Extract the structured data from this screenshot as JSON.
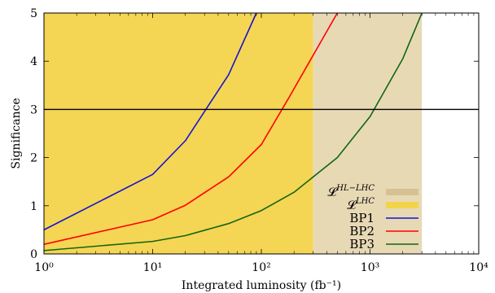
{
  "chart_data": {
    "type": "line",
    "xscale": "log",
    "xlim": [
      1,
      10000
    ],
    "ylim": [
      0,
      5
    ],
    "xlabel": "Integrated luminosity (fb⁻¹)",
    "ylabel": "Significance",
    "x_tick_labels": [
      "10⁰",
      "10¹",
      "10²",
      "10³",
      "10⁴"
    ],
    "y_tick_labels": [
      "0",
      "1",
      "2",
      "3",
      "4",
      "5"
    ],
    "legend_position": "lower-right",
    "reference_line": {
      "y": 3,
      "color": "#000000"
    },
    "bands": [
      {
        "name": "𝓛",
        "superscript": "LHC",
        "x_from": 1,
        "x_to": 300,
        "color": "#f5d554"
      },
      {
        "name": "𝓛",
        "superscript": "HL−LHC",
        "x_from": 300,
        "x_to": 3000,
        "color": "#e8d9b5"
      }
    ],
    "legend_swatches": {
      "hl_lhc_color": "#d6c193",
      "lhc_color": "#f3d34a"
    },
    "series": [
      {
        "name": "BP1",
        "color": "#1414d2",
        "x": [
          1,
          10,
          20,
          50,
          90
        ],
        "y": [
          0.5,
          1.65,
          2.35,
          3.72,
          5.0
        ]
      },
      {
        "name": "BP2",
        "color": "#ff0000",
        "x": [
          1,
          10,
          20,
          50,
          100,
          180,
          500
        ],
        "y": [
          0.2,
          0.71,
          1.01,
          1.6,
          2.27,
          3.25,
          5.0
        ]
      },
      {
        "name": "BP3",
        "color": "#116611",
        "x": [
          1,
          10,
          20,
          50,
          100,
          200,
          500,
          1000,
          2000,
          3000
        ],
        "y": [
          0.07,
          0.26,
          0.38,
          0.63,
          0.9,
          1.28,
          2.0,
          2.85,
          4.05,
          5.0
        ]
      }
    ]
  }
}
